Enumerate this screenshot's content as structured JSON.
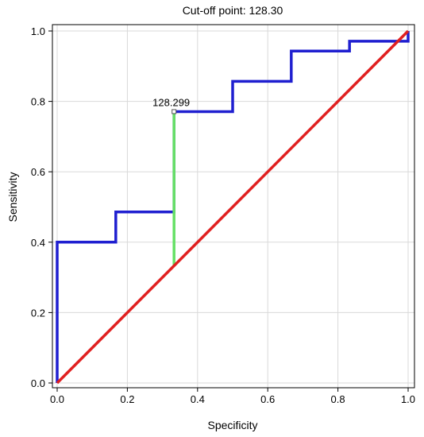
{
  "chart_data": {
    "type": "line",
    "title": "Cut-off point: 128.30",
    "xlabel": "Specificity",
    "ylabel": "Sensitivity",
    "xlim": [
      0.0,
      1.0
    ],
    "ylim": [
      0.0,
      1.0
    ],
    "xticks": [
      "0.0",
      "0.2",
      "0.4",
      "0.6",
      "0.8",
      "1.0"
    ],
    "yticks": [
      "0.0",
      "0.2",
      "0.4",
      "0.6",
      "0.8",
      "1.0"
    ],
    "grid": true,
    "series": [
      {
        "color": "#1f1fd0",
        "x": [
          0.0,
          0.0,
          0.167,
          0.167,
          0.333,
          0.333,
          0.5,
          0.5,
          0.667,
          0.667,
          0.833,
          0.833,
          1.0,
          1.0
        ],
        "y": [
          0.0,
          0.4,
          0.4,
          0.486,
          0.486,
          0.771,
          0.771,
          0.857,
          0.857,
          0.943,
          0.943,
          0.971,
          0.971,
          1.0
        ]
      },
      {
        "color": "#e02020",
        "x": [
          0.0,
          1.0
        ],
        "y": [
          0.0,
          1.0
        ]
      }
    ],
    "cutoff": {
      "label": "128.299",
      "x": 0.333,
      "y_low": 0.333,
      "y_high": 0.771,
      "color": "#66e066"
    }
  }
}
